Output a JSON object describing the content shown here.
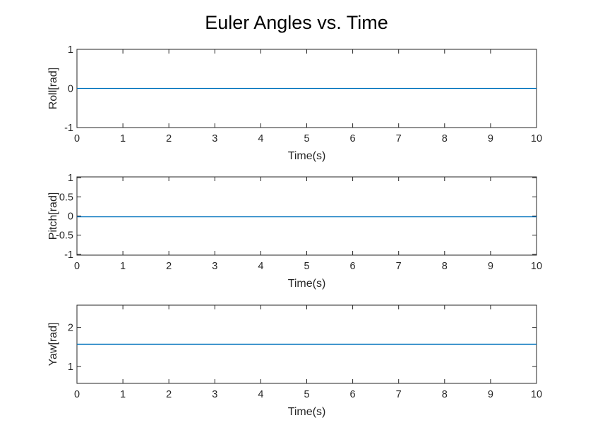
{
  "chart_data": {
    "title": "Euler Angles vs. Time",
    "line_color": "#0072BD",
    "axis_color": "#262626",
    "subplots": [
      {
        "type": "line",
        "xlabel": "Time(s)",
        "ylabel": "Roll[rad]",
        "xlim": [
          0,
          10
        ],
        "ylim": [
          -1,
          1
        ],
        "xticks": [
          0,
          1,
          2,
          3,
          4,
          5,
          6,
          7,
          8,
          9,
          10
        ],
        "yticks": [
          -1,
          0,
          1
        ],
        "ytick_labels": [
          "-1",
          "0",
          "1"
        ],
        "grid": false,
        "series": [
          {
            "x": [
              0,
              10
            ],
            "y": [
              0,
              0
            ]
          }
        ]
      },
      {
        "type": "line",
        "xlabel": "Time(s)",
        "ylabel": "Pitch[rad]",
        "xlim": [
          0,
          10
        ],
        "ylim": [
          -1.02,
          1.02
        ],
        "xticks": [
          0,
          1,
          2,
          3,
          4,
          5,
          6,
          7,
          8,
          9,
          10
        ],
        "yticks": [
          -1,
          -0.5,
          0,
          0.5,
          1
        ],
        "ytick_labels": [
          "-1",
          "-0.5",
          "0",
          "0.5",
          "1"
        ],
        "grid": false,
        "series": [
          {
            "x": [
              0,
              10
            ],
            "y": [
              -0.02,
              -0.02
            ]
          }
        ]
      },
      {
        "type": "line",
        "xlabel": "Time(s)",
        "ylabel": "Yaw[rad]",
        "xlim": [
          0,
          10
        ],
        "ylim": [
          0.57,
          2.57
        ],
        "xticks": [
          0,
          1,
          2,
          3,
          4,
          5,
          6,
          7,
          8,
          9,
          10
        ],
        "yticks": [
          1,
          2
        ],
        "ytick_labels": [
          "1",
          "2"
        ],
        "grid": false,
        "series": [
          {
            "x": [
              0,
              10
            ],
            "y": [
              1.5708,
              1.5708
            ]
          }
        ]
      }
    ]
  }
}
